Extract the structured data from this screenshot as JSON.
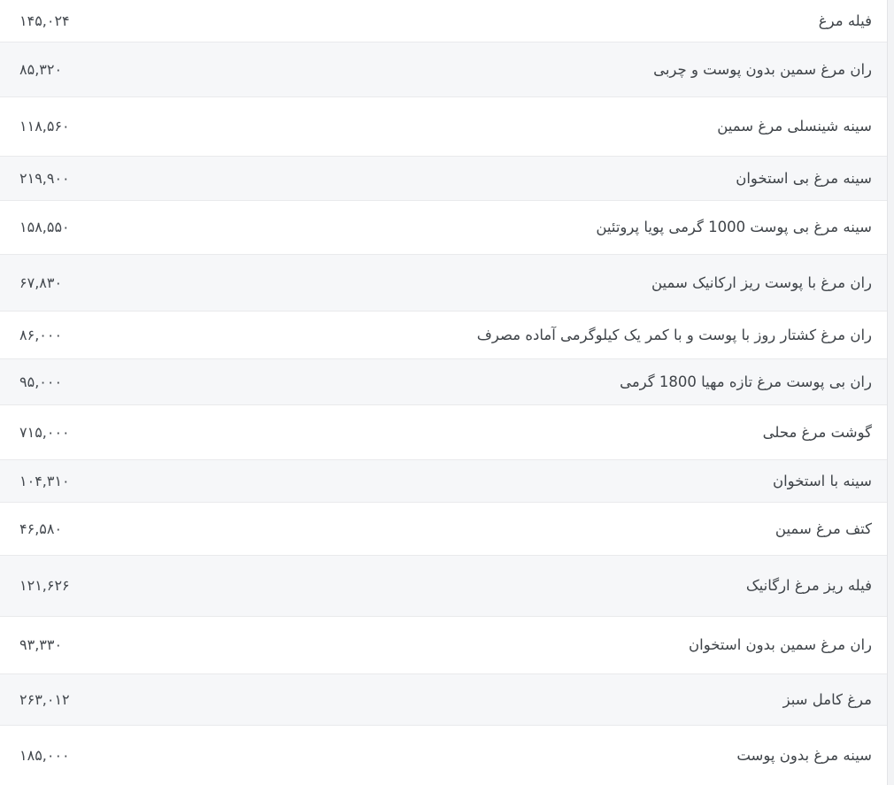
{
  "page": {
    "language": "fa",
    "direction": "rtl"
  },
  "colors": {
    "row_bg": "#ffffff",
    "row_alt_bg": "#f6f7f9",
    "divider": "#e9eaec",
    "table_border": "#e3e4e7",
    "text": "#3f4449",
    "price_text": "#44494f",
    "scroll_track": "#f2f3f5"
  },
  "table": {
    "rows": [
      {
        "name": "فیله مرغ",
        "price": "۱۴۵,۰۲۴"
      },
      {
        "name": "ران مرغ سمین بدون پوست و چربی",
        "price": "۸۵,۳۲۰"
      },
      {
        "name": "سینه شینسلی مرغ سمین",
        "price": "۱۱۸,۵۶۰"
      },
      {
        "name": "سینه مرغ بی استخوان",
        "price": "۲۱۹,۹۰۰"
      },
      {
        "name": "سینه مرغ بی پوست 1000 گرمی پویا پروتئین",
        "price": "۱۵۸,۵۵۰"
      },
      {
        "name": "ران مرغ با پوست ریز ارکانیک سمین",
        "price": "۶۷,۸۳۰"
      },
      {
        "name": "ران مرغ کشتار روز با پوست و با کمر یک کیلوگرمی آماده مصرف",
        "price": "۸۶,۰۰۰"
      },
      {
        "name": "ران بی پوست مرغ تازه مهیا 1800 گرمی",
        "price": "۹۵,۰۰۰"
      },
      {
        "name": "گوشت مرغ محلی",
        "price": "۷۱۵,۰۰۰"
      },
      {
        "name": "سینه با استخوان",
        "price": "۱۰۴,۳۱۰"
      },
      {
        "name": "کتف مرغ سمین",
        "price": "۴۶,۵۸۰"
      },
      {
        "name": "فیله ریز مرغ ارگانیک",
        "price": "۱۲۱,۶۲۶"
      },
      {
        "name": "ران مرغ سمین بدون استخوان",
        "price": "۹۳,۳۳۰"
      },
      {
        "name": "مرغ کامل سبز",
        "price": "۲۶۳,۰۱۲"
      },
      {
        "name": "سینه مرغ بدون پوست",
        "price": "۱۸۵,۰۰۰"
      }
    ]
  }
}
